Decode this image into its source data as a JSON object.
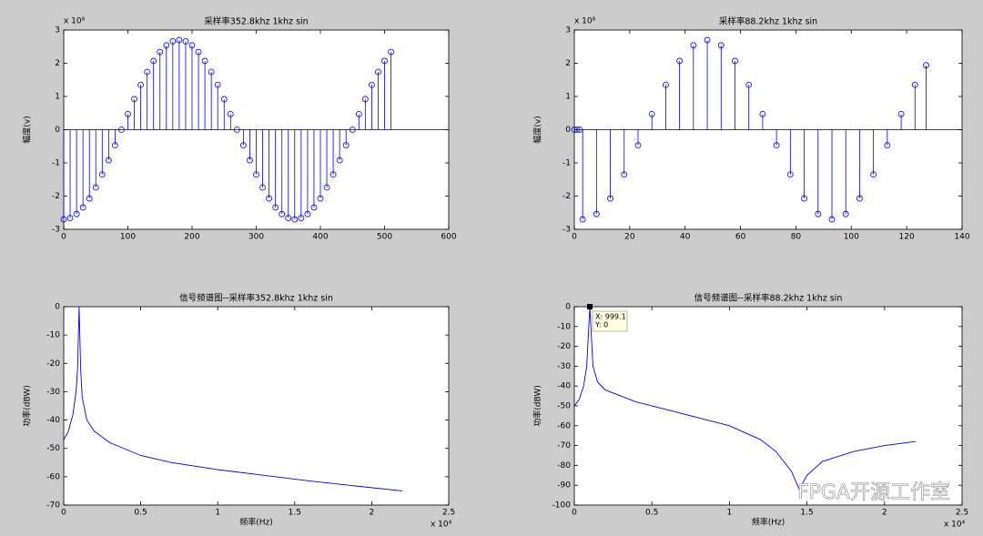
{
  "chart_data": [
    {
      "type": "stem",
      "title": "采样率352.8khz 1khz sin",
      "ylabel": "幅度(v)",
      "y_multiplier": "x 10⁸",
      "color": "#0000ff",
      "x": [
        0,
        10,
        20,
        30,
        40,
        50,
        60,
        70,
        80,
        90,
        100,
        110,
        120,
        130,
        140,
        150,
        160,
        170,
        180,
        190,
        200,
        210,
        220,
        230,
        240,
        250,
        260,
        270,
        280,
        290,
        300,
        310,
        320,
        330,
        340,
        350,
        360,
        370,
        380,
        390,
        400,
        410,
        420,
        430,
        440,
        450,
        460,
        470,
        480,
        490,
        500,
        510
      ],
      "values": [
        -2.7,
        -2.66,
        -2.54,
        -2.34,
        -2.07,
        -1.74,
        -1.35,
        -0.92,
        -0.47,
        0,
        0.47,
        0.92,
        1.35,
        1.74,
        2.07,
        2.34,
        2.54,
        2.66,
        2.7,
        2.66,
        2.54,
        2.34,
        2.07,
        1.74,
        1.35,
        0.92,
        0.47,
        0,
        -0.47,
        -0.92,
        -1.35,
        -1.74,
        -2.07,
        -2.34,
        -2.54,
        -2.66,
        -2.7,
        -2.66,
        -2.54,
        -2.34,
        -2.07,
        -1.74,
        -1.35,
        -0.92,
        -0.47,
        0,
        0.47,
        0.92,
        1.35,
        1.74,
        2.07,
        2.34
      ],
      "xlim": [
        0,
        600
      ],
      "xticks": [
        0,
        100,
        200,
        300,
        400,
        500,
        600
      ],
      "ylim": [
        -3,
        3
      ],
      "yticks": [
        -3,
        -2,
        -1,
        0,
        1,
        2,
        3
      ]
    },
    {
      "type": "stem",
      "title": "采样率88.2khz 1khz sin",
      "ylabel": "幅度(v)",
      "y_multiplier": "x 10⁸",
      "color": "#0000ff",
      "x": [
        0,
        1,
        2,
        3,
        8,
        13,
        18,
        23,
        28,
        33,
        38,
        43,
        48,
        53,
        58,
        63,
        68,
        73,
        78,
        83,
        88,
        93,
        98,
        103,
        108,
        113,
        118,
        123,
        127
      ],
      "values": [
        0,
        0,
        0,
        -2.7,
        -2.54,
        -2.07,
        -1.35,
        -0.47,
        0.47,
        1.35,
        2.07,
        2.54,
        2.7,
        2.54,
        2.07,
        1.35,
        0.47,
        -0.47,
        -1.35,
        -2.07,
        -2.54,
        -2.7,
        -2.54,
        -2.07,
        -1.35,
        -0.47,
        0.47,
        1.35,
        1.94
      ],
      "xlim": [
        0,
        140
      ],
      "xticks": [
        0,
        20,
        40,
        60,
        80,
        100,
        120,
        140
      ],
      "ylim": [
        -3,
        3
      ],
      "yticks": [
        -3,
        -2,
        -1,
        0,
        1,
        2,
        3
      ]
    },
    {
      "type": "line",
      "title": "信号频谱图--采样率352.8khz 1khz sin",
      "xlabel": "频率(Hz)",
      "ylabel": "功率(dBW)",
      "x_multiplier": "x 10⁴",
      "color": "#0000ff",
      "x": [
        0,
        0.03,
        0.06,
        0.08,
        0.09,
        0.1,
        0.11,
        0.12,
        0.15,
        0.2,
        0.3,
        0.5,
        0.7,
        1,
        1.3,
        1.6,
        1.9,
        2.2
      ],
      "values": [
        -47,
        -44,
        -38,
        -30,
        -22,
        0,
        -22,
        -32,
        -40,
        -44,
        -48,
        -52.5,
        -55,
        -57.5,
        -59.5,
        -61.5,
        -63.3,
        -65
      ],
      "xlim": [
        0,
        2.5
      ],
      "xticks": [
        0,
        0.5,
        1,
        1.5,
        2,
        2.5
      ],
      "ylim": [
        -70,
        0
      ],
      "yticks": [
        -70,
        -60,
        -50,
        -40,
        -30,
        -20,
        -10,
        0
      ]
    },
    {
      "type": "line",
      "title": "信号频谱图--采样率88.2khz 1khz sin",
      "xlabel": "频率(Hz)",
      "ylabel": "功率(dBW)",
      "x_multiplier": "x 10⁴",
      "color": "#0000ff",
      "x": [
        0,
        0.03,
        0.06,
        0.08,
        0.1,
        0.12,
        0.15,
        0.2,
        0.4,
        0.6,
        0.8,
        1,
        1.2,
        1.3,
        1.4,
        1.45,
        1.5,
        1.6,
        1.8,
        2,
        2.2
      ],
      "values": [
        -50,
        -47,
        -40,
        -30,
        0,
        -30,
        -38,
        -42,
        -48,
        -52,
        -56,
        -60,
        -67,
        -73,
        -83,
        -92,
        -85,
        -78,
        -73,
        -70,
        -68
      ],
      "xlim": [
        0,
        2.5
      ],
      "xticks": [
        0,
        0.5,
        1,
        1.5,
        2,
        2.5
      ],
      "ylim": [
        -100,
        0
      ],
      "yticks": [
        -100,
        -90,
        -80,
        -70,
        -60,
        -50,
        -40,
        -30,
        -20,
        -10,
        0
      ],
      "annotations": [
        "X: 999.1",
        "Y: 0"
      ]
    }
  ],
  "watermark": "FPGA开源工作室"
}
